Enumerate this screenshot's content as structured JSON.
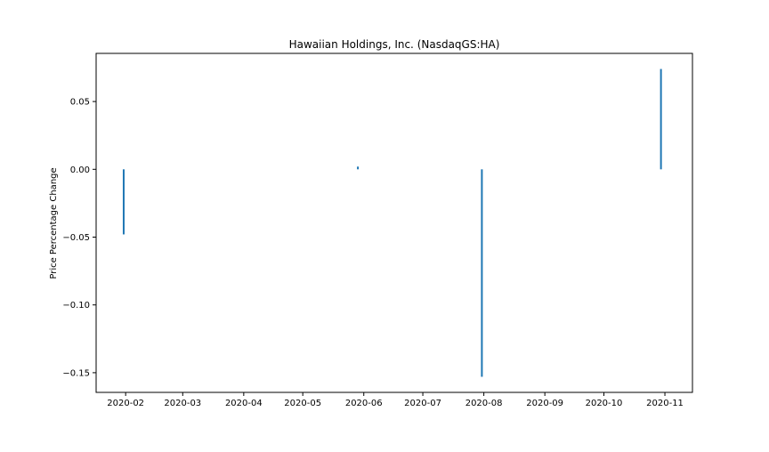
{
  "chart_data": {
    "type": "bar",
    "title": "Hawaiian Holdings, Inc. (NasdaqGS:HA)",
    "xlabel": "",
    "ylabel": "Price Percentage Change",
    "x_tick_labels": [
      "2020-02",
      "2020-03",
      "2020-04",
      "2020-05",
      "2020-06",
      "2020-07",
      "2020-08",
      "2020-09",
      "2020-10",
      "2020-11"
    ],
    "y_tick_labels": [
      "0.05",
      "0.00",
      "−0.05",
      "−0.10",
      "−0.15"
    ],
    "y_tick_values": [
      0.05,
      0.0,
      -0.05,
      -0.1,
      -0.15
    ],
    "xlim": [
      "2020-01-17",
      "2020-11-15"
    ],
    "ylim": [
      -0.1645,
      0.0855
    ],
    "grid": false,
    "series": [
      {
        "color": "#1f77b4",
        "points": [
          {
            "x": "2020-01-31",
            "y": -0.048
          },
          {
            "x": "2020-05-29",
            "y": 0.002
          },
          {
            "x": "2020-07-31",
            "y": -0.153
          },
          {
            "x": "2020-10-30",
            "y": 0.074
          }
        ]
      }
    ]
  }
}
